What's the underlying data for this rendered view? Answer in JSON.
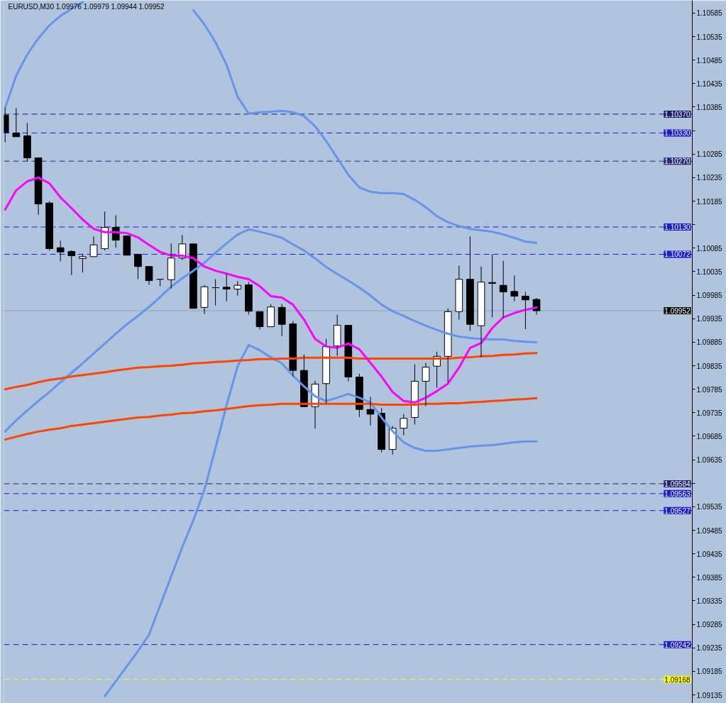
{
  "chart_data": {
    "type": "candlestick",
    "title": "EURUSD,M30  1.09976 1.09979 1.09944 1.09952",
    "categories": [
      null,
      null,
      null,
      null,
      null,
      null,
      null,
      null,
      null,
      null,
      null,
      null,
      null,
      null,
      null,
      null,
      null,
      null,
      null,
      null,
      null,
      null,
      null,
      null,
      null,
      null,
      null,
      null,
      null,
      null,
      null,
      null,
      null,
      null,
      null,
      null,
      null,
      null,
      null,
      null,
      null,
      null,
      null,
      null,
      null,
      null,
      null,
      null,
      null
    ],
    "ohlc": [
      [
        1.10368,
        1.10383,
        1.1031,
        1.10331
      ],
      [
        1.1033,
        1.10383,
        1.10322,
        1.10322
      ],
      [
        1.10324,
        1.10351,
        1.1027,
        1.10277
      ],
      [
        1.10277,
        1.10277,
        1.10156,
        1.10179
      ],
      [
        1.10181,
        1.10185,
        1.1008,
        1.10084
      ],
      [
        1.10086,
        1.10101,
        1.10057,
        1.10077
      ],
      [
        1.10078,
        1.10081,
        1.10028,
        1.10069
      ],
      [
        1.10063,
        1.10073,
        1.10033,
        1.10067
      ],
      [
        1.10067,
        1.1011,
        1.10067,
        1.10092
      ],
      [
        1.10084,
        1.10163,
        1.1008,
        1.10129
      ],
      [
        1.10129,
        1.10155,
        1.10086,
        1.10102
      ],
      [
        1.10111,
        1.10111,
        1.1007,
        1.1007
      ],
      [
        1.10072,
        1.10072,
        1.10019,
        1.10046
      ],
      [
        1.10046,
        1.10046,
        1.10007,
        1.10016
      ],
      [
        1.10019,
        1.10019,
        1.10004,
        1.10019
      ],
      [
        1.10018,
        1.10095,
        1.09999,
        1.10064
      ],
      [
        1.10064,
        1.10113,
        1.1006,
        1.10094
      ],
      [
        1.10094,
        1.10094,
        1.09957,
        1.09957
      ],
      [
        1.09959,
        1.10006,
        1.09945,
        1.10003
      ],
      [
        1.10001,
        1.10019,
        1.09963,
        1.10001
      ],
      [
        1.10002,
        1.10031,
        1.09972,
        1.09998
      ],
      [
        1.09998,
        1.10015,
        1.09984,
        1.10006
      ],
      [
        1.10007,
        1.10013,
        1.09944,
        1.09951
      ],
      [
        1.0995,
        1.0995,
        1.09912,
        1.09918
      ],
      [
        1.09918,
        1.09966,
        1.09918,
        1.0996
      ],
      [
        1.09959,
        1.09966,
        1.09898,
        1.09923
      ],
      [
        1.09924,
        1.0993,
        1.09812,
        1.09825
      ],
      [
        1.09825,
        1.09859,
        1.09748,
        1.09748
      ],
      [
        1.09748,
        1.09803,
        1.09701,
        1.09796
      ],
      [
        1.09797,
        1.09892,
        1.09755,
        1.09876
      ],
      [
        1.09877,
        1.09944,
        1.09856,
        1.09921
      ],
      [
        1.09921,
        1.09921,
        1.09802,
        1.09811
      ],
      [
        1.09811,
        1.09818,
        1.09726,
        1.09742
      ],
      [
        1.09742,
        1.09769,
        1.09708,
        1.09732
      ],
      [
        1.09734,
        1.09745,
        1.09651,
        1.09657
      ],
      [
        1.09657,
        1.09707,
        1.09646,
        1.09702
      ],
      [
        1.09702,
        1.09732,
        1.09687,
        1.09723
      ],
      [
        1.09725,
        1.09838,
        1.0971,
        1.09802
      ],
      [
        1.09802,
        1.09841,
        1.09749,
        1.09832
      ],
      [
        1.09834,
        1.09865,
        1.09788,
        1.09855
      ],
      [
        1.09855,
        1.09957,
        1.098,
        1.0995
      ],
      [
        1.0995,
        1.10048,
        1.09933,
        1.10019
      ],
      [
        1.10019,
        1.1011,
        1.09909,
        1.09923
      ],
      [
        1.0992,
        1.10046,
        1.09853,
        1.10013
      ],
      [
        1.10012,
        1.10072,
        1.09938,
        1.1001
      ],
      [
        1.10006,
        1.10058,
        1.09936,
        1.09992
      ],
      [
        1.09993,
        1.10027,
        1.09972,
        1.09983
      ],
      [
        1.09983,
        1.09992,
        1.09913,
        1.09975
      ],
      [
        1.09976,
        1.09979,
        1.09944,
        1.09952
      ]
    ],
    "colors": [
      "#000000",
      "#000000",
      "#000000",
      "#000000",
      "#000000",
      "#000000",
      "#000000",
      "#ffffff",
      "#ffffff",
      "#ffffff",
      "#000000",
      "#000000",
      "#000000",
      "#000000",
      "#000000",
      "#ffffff",
      "#ffffff",
      "#000000",
      "#ffffff",
      "#000000",
      "#000000",
      "#ffffff",
      "#000000",
      "#000000",
      "#ffffff",
      "#000000",
      "#000000",
      "#000000",
      "#ffffff",
      "#ffffff",
      "#ffffff",
      "#000000",
      "#000000",
      "#000000",
      "#000000",
      "#ffffff",
      "#ffffff",
      "#ffffff",
      "#ffffff",
      "#ffffff",
      "#ffffff",
      "#ffffff",
      "#000000",
      "#ffffff",
      "#000000",
      "#000000",
      "#000000",
      "#000000",
      "#000000"
    ],
    "series": [
      {
        "type": "line",
        "color": "#6495ed",
        "values": [
          1.10383,
          1.10452,
          1.10497,
          1.10531,
          1.10559,
          1.10579,
          1.10594,
          1.10608,
          null,
          null,
          null,
          null,
          null,
          null,
          null,
          null,
          null,
          1.10591,
          1.10561,
          1.10523,
          1.10475,
          1.10407,
          1.10371,
          1.10374,
          1.10375,
          1.10377,
          1.10374,
          1.10366,
          1.10344,
          1.10313,
          1.10277,
          1.10241,
          1.10214,
          1.10205,
          1.10202,
          1.10202,
          1.102,
          1.10188,
          1.10172,
          1.10153,
          1.1014,
          1.10132,
          1.10126,
          1.10123,
          1.1012,
          1.10114,
          1.10107,
          1.10099,
          1.10096
        ]
      },
      {
        "type": "line",
        "color": "#6495ed",
        "values": [
          1.09695,
          1.09719,
          1.0974,
          1.0976,
          1.09779,
          1.098,
          1.0982,
          1.0984,
          1.09861,
          1.09882,
          1.09903,
          1.09923,
          1.09941,
          1.0996,
          1.09981,
          1.10003,
          1.10021,
          1.10037,
          1.10054,
          1.10075,
          1.10095,
          1.10114,
          1.10125,
          1.1012,
          1.10114,
          1.10107,
          1.10093,
          1.1008,
          1.10063,
          1.10045,
          1.1003,
          1.10016,
          1.10001,
          1.09984,
          1.09965,
          1.09951,
          1.09941,
          1.0993,
          1.0992,
          1.09911,
          1.09903,
          1.09897,
          1.09894,
          1.09892,
          1.09891,
          1.09891,
          1.09888,
          1.09886,
          1.09885
        ]
      },
      {
        "type": "line",
        "color": "#6495ed",
        "values": [
          null,
          null,
          null,
          null,
          null,
          null,
          null,
          null,
          null,
          1.09132,
          1.09164,
          1.09196,
          1.09228,
          1.09263,
          1.09325,
          1.09387,
          1.09449,
          1.09506,
          1.09571,
          1.0966,
          1.09751,
          1.09834,
          1.09879,
          1.09868,
          1.09853,
          1.0984,
          1.09814,
          1.09791,
          1.0977,
          1.0976,
          1.09767,
          1.09775,
          1.09767,
          1.09757,
          1.09725,
          1.09696,
          1.09672,
          1.0966,
          1.09654,
          1.09654,
          1.09657,
          1.0966,
          1.09663,
          1.09665,
          1.09666,
          1.09669,
          1.09672,
          1.09674,
          1.09674
        ]
      },
      {
        "type": "line",
        "color": "#ff4500",
        "values": [
          1.09785,
          1.0979,
          1.09794,
          1.098,
          1.09805,
          1.09808,
          1.09812,
          1.09815,
          1.09818,
          1.09821,
          1.09825,
          1.09828,
          1.09831,
          1.09832,
          1.09834,
          1.09835,
          1.09837,
          1.0984,
          1.09841,
          1.09843,
          1.09844,
          1.09846,
          1.09847,
          1.09849,
          1.09849,
          1.0985,
          1.0985,
          1.09852,
          1.09852,
          1.09852,
          1.09852,
          1.09852,
          1.0985,
          1.0985,
          1.0985,
          1.0985,
          1.0985,
          1.0985,
          1.0985,
          1.0985,
          1.0985,
          1.09852,
          1.09853,
          1.09855,
          1.09856,
          1.09858,
          1.09859,
          1.09861,
          1.09862
        ]
      },
      {
        "type": "line",
        "color": "#ff4500",
        "values": [
          1.09678,
          1.09684,
          1.0969,
          1.09695,
          1.09699,
          1.09702,
          1.09707,
          1.0971,
          1.09713,
          1.09716,
          1.09719,
          1.09722,
          1.09725,
          1.09726,
          1.09729,
          1.09731,
          1.09734,
          1.09735,
          1.09738,
          1.0974,
          1.09743,
          1.09746,
          1.09749,
          1.09751,
          1.09752,
          1.09754,
          1.09754,
          1.09754,
          1.09754,
          1.09754,
          1.09754,
          1.09754,
          1.09754,
          1.09754,
          1.09752,
          1.09752,
          1.09752,
          1.09752,
          1.09754,
          1.09754,
          1.09755,
          1.09755,
          1.09757,
          1.09758,
          1.0976,
          1.09761,
          1.09763,
          1.09764,
          1.09766
        ]
      },
      {
        "type": "line",
        "color": "#ff00ff",
        "values": [
          1.10167,
          1.10208,
          1.10227,
          1.10235,
          1.10223,
          1.10193,
          1.1017,
          1.10146,
          1.10126,
          1.10119,
          1.10119,
          1.10117,
          1.10108,
          1.10092,
          1.10077,
          1.10069,
          1.10069,
          1.10064,
          1.10046,
          1.10037,
          1.10031,
          1.10024,
          1.10019,
          1.10004,
          1.09983,
          1.0998,
          1.09965,
          1.09933,
          1.09892,
          1.09876,
          1.09873,
          1.09882,
          1.0987,
          1.09841,
          1.09812,
          1.09779,
          1.0976,
          1.09757,
          1.09767,
          1.09781,
          1.09797,
          1.09831,
          1.09873,
          1.09883,
          1.09915,
          1.09938,
          1.09947,
          1.09954,
          1.09959
        ]
      }
    ],
    "ylim": [
      1.09117,
      1.10612
    ],
    "yticks": [
      1.10585,
      1.10535,
      1.10485,
      1.10435,
      1.10385,
      {
        "value": 1.10335,
        "label": null
      },
      1.10285,
      1.10235,
      1.10185,
      {
        "value": 1.10135,
        "label": null
      },
      1.10085,
      1.10035,
      1.09985,
      1.09935,
      1.09885,
      1.09835,
      1.09785,
      1.09735,
      1.09685,
      1.09635,
      {
        "value": 1.09585,
        "label": null
      },
      1.09535,
      1.09485,
      1.09435,
      1.09385,
      1.09335,
      1.09285,
      1.09235,
      1.09185,
      1.09135
    ],
    "ref_lines": [
      {
        "axis": "y",
        "value": 1.1037,
        "label": "1.10370",
        "color": "#1c1c6e",
        "line_style": "dashed"
      },
      {
        "axis": "y",
        "value": 1.1033,
        "label": "1.10330",
        "color": "#1a1ad8",
        "line_style": "dashed"
      },
      {
        "axis": "y",
        "value": 1.1027,
        "label": "1.10270",
        "color": "#2a2a78",
        "line_style": "dashed"
      },
      {
        "axis": "y",
        "value": 1.1013,
        "label": "1.10130",
        "color": "#1a1ad8",
        "line_style": "dashed"
      },
      {
        "axis": "y",
        "value": 1.10072,
        "label": "1.10072",
        "color": "#1a1ad8",
        "line_style": "dashed"
      },
      {
        "axis": "y",
        "value": 1.09952,
        "label": "1.09952",
        "color": "#000000",
        "line_style": "solid"
      },
      {
        "axis": "y",
        "value": 1.09584,
        "label": "1.09584",
        "color": "#22226e",
        "line_style": "dashed"
      },
      {
        "axis": "y",
        "value": 1.09563,
        "label": "1.09563",
        "color": "#1a1ad8",
        "line_style": "dashed"
      },
      {
        "axis": "y",
        "value": 1.09527,
        "label": "1.09527",
        "color": "#1a1ad8",
        "line_style": "dashed"
      },
      {
        "axis": "y",
        "value": 1.09242,
        "label": "1.09242",
        "color": "#1a1ad8",
        "line_style": "dashed"
      },
      {
        "axis": "y",
        "value": 1.09168,
        "label": "1.09168",
        "color": "#ffff00",
        "line_style": "dashed"
      }
    ]
  }
}
